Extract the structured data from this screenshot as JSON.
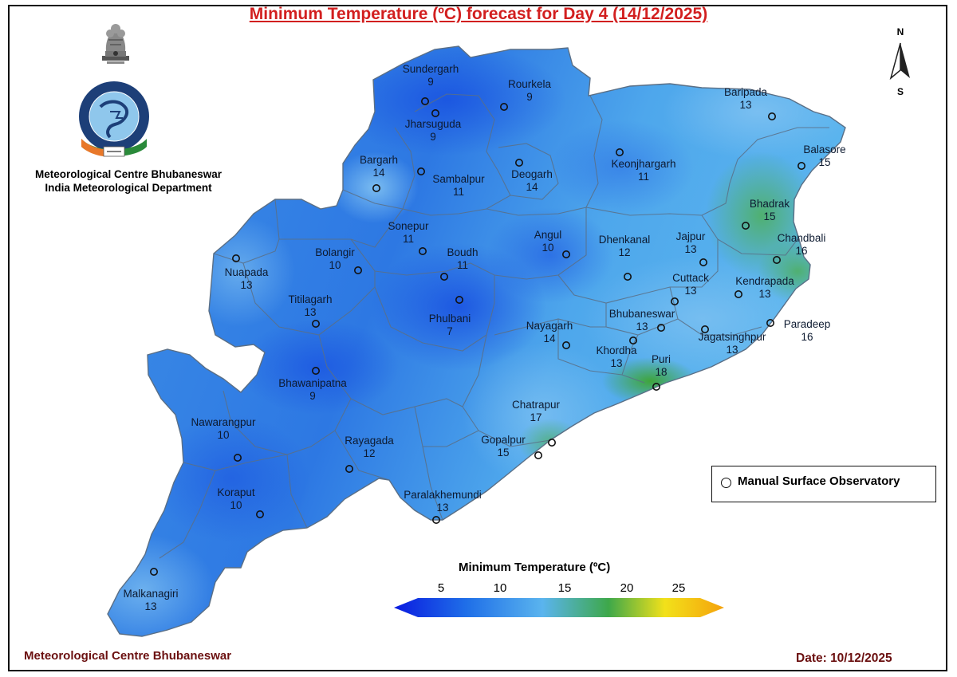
{
  "title": "Minimum Temperature (ºC) forecast for Day 4 (14/12/2025)",
  "organization": {
    "line1": "Meteorological Centre Bhubaneswar",
    "line2": "India Meteorological Department",
    "logo_text": "भारत मौसम विज्ञान विभाग INDIA METEOROLOGICAL DEPARTMENT"
  },
  "north_arrow": {
    "top_label": "N",
    "bottom_label": "S"
  },
  "stations": [
    {
      "name": "Sundergarh",
      "value": "9"
    },
    {
      "name": "Rourkela",
      "value": "9"
    },
    {
      "name": "Jharsuguda",
      "value": "9"
    },
    {
      "name": "Baripada",
      "value": "13"
    },
    {
      "name": "Balasore",
      "value": "15"
    },
    {
      "name": "Bargarh",
      "value": "14"
    },
    {
      "name": "Sambalpur",
      "value": "11"
    },
    {
      "name": "Deogarh",
      "value": "14"
    },
    {
      "name": "Keonjhargarh",
      "value": "11"
    },
    {
      "name": "Bhadrak",
      "value": "15"
    },
    {
      "name": "Chandbali",
      "value": "16"
    },
    {
      "name": "Sonepur",
      "value": "11"
    },
    {
      "name": "Boudh",
      "value": "11"
    },
    {
      "name": "Angul",
      "value": "10"
    },
    {
      "name": "Dhenkanal",
      "value": "12"
    },
    {
      "name": "Jajpur",
      "value": "13"
    },
    {
      "name": "Kendrapada",
      "value": "13"
    },
    {
      "name": "Cuttack",
      "value": "13"
    },
    {
      "name": "Bolangir",
      "value": "10"
    },
    {
      "name": "Nuapada",
      "value": "13"
    },
    {
      "name": "Titilagarh",
      "value": "13"
    },
    {
      "name": "Phulbani",
      "value": "7"
    },
    {
      "name": "Bhubaneswar",
      "value": "13"
    },
    {
      "name": "Paradeep",
      "value": "16"
    },
    {
      "name": "Jagatsinghpur",
      "value": "13"
    },
    {
      "name": "Nayagarh",
      "value": "14"
    },
    {
      "name": "Khordha",
      "value": "13"
    },
    {
      "name": "Puri",
      "value": "18"
    },
    {
      "name": "Bhawanipatna",
      "value": "9"
    },
    {
      "name": "Chatrapur",
      "value": "17"
    },
    {
      "name": "Nawarangpur",
      "value": "10"
    },
    {
      "name": "Rayagada",
      "value": "12"
    },
    {
      "name": "Gopalpur",
      "value": "15"
    },
    {
      "name": "Koraput",
      "value": "10"
    },
    {
      "name": "Paralakhemundi",
      "value": "13"
    },
    {
      "name": "Malkanagiri",
      "value": "13"
    }
  ],
  "legend": {
    "marker_label": "Manual Surface Observatory"
  },
  "colorbar": {
    "title": "Minimum Temperature (ºC)",
    "ticks": [
      "5",
      "10",
      "15",
      "20",
      "25"
    ],
    "colors": [
      "#0a1be0",
      "#1f6fe8",
      "#5ab4ee",
      "#3ea84a",
      "#f2e11a",
      "#f5a20c"
    ]
  },
  "footer": {
    "left": "Meteorological Centre Bhubaneswar",
    "right": "Date: 10/12/2025"
  }
}
